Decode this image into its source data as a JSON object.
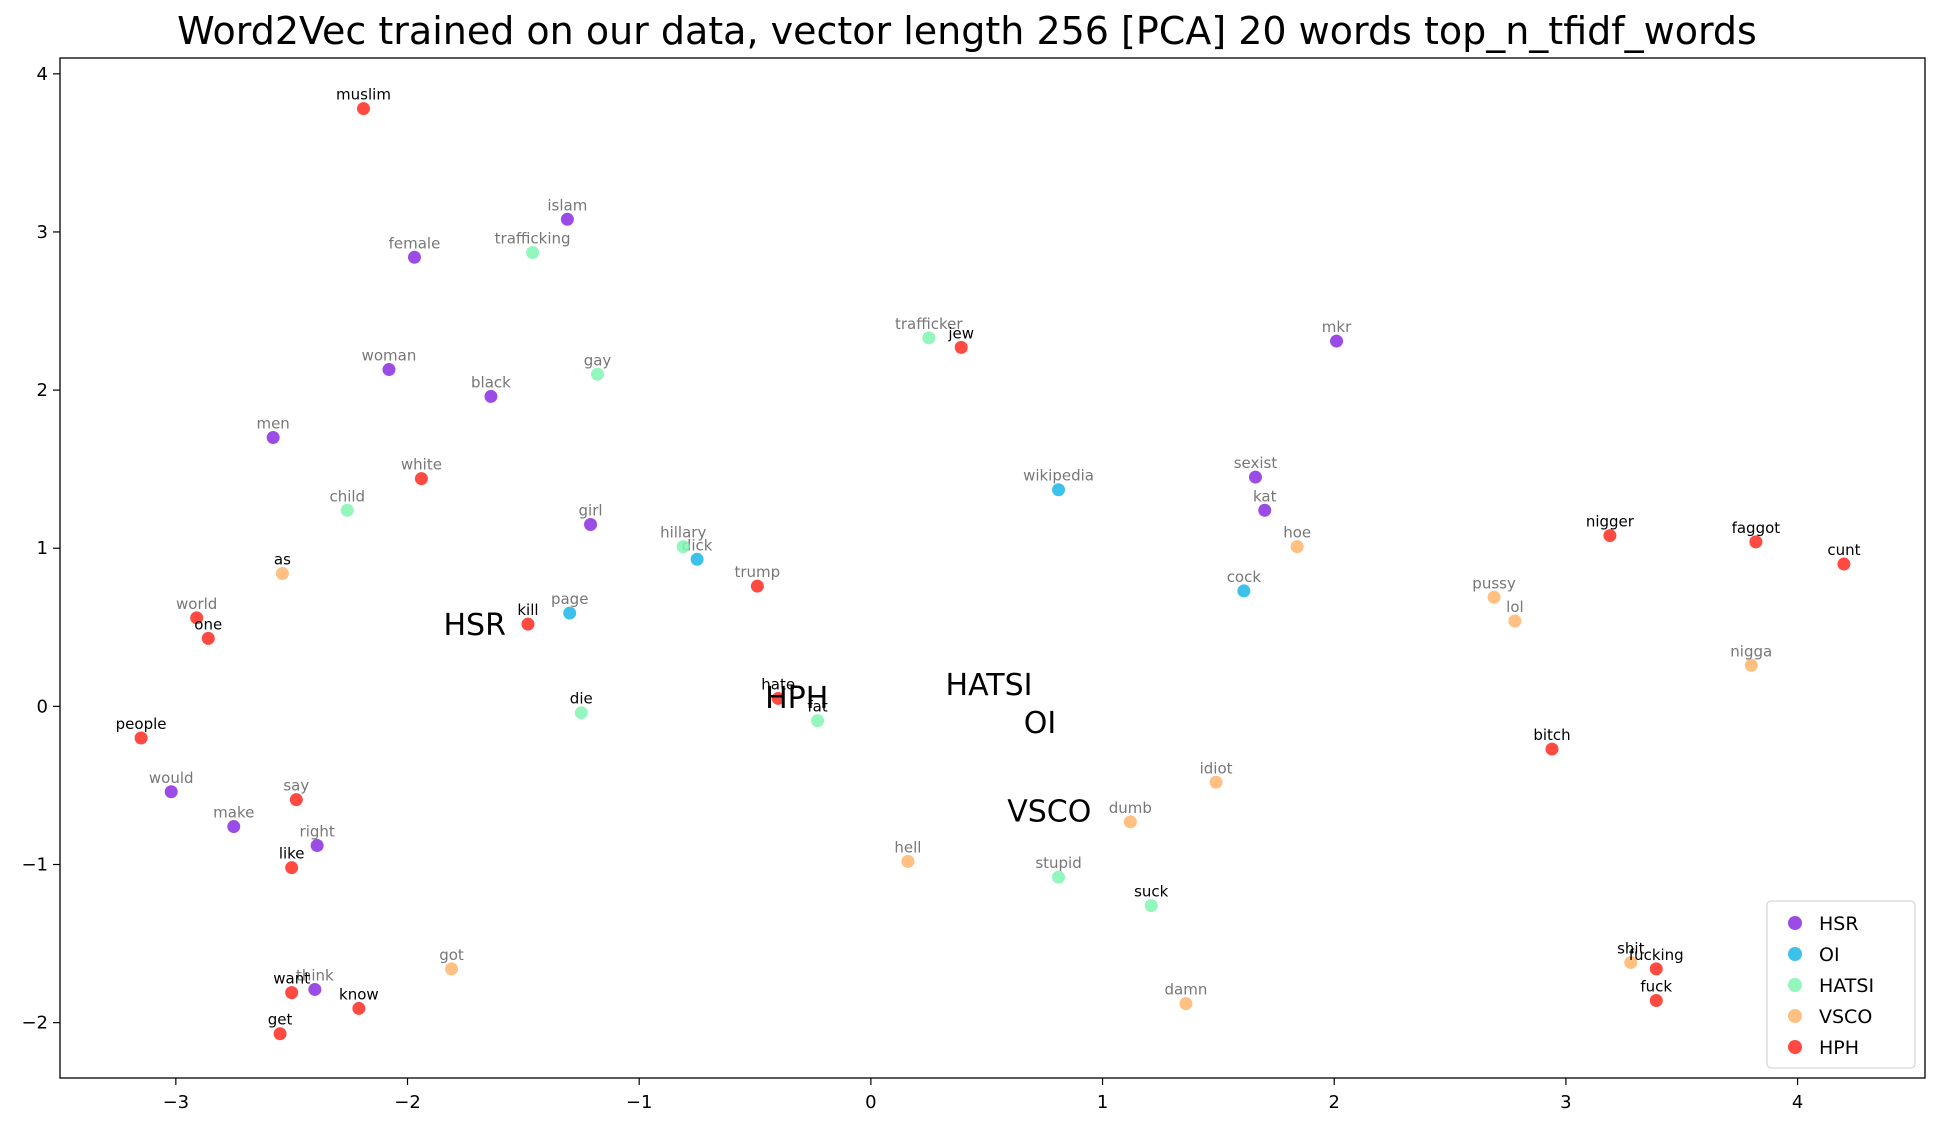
{
  "chart_data": {
    "type": "scatter",
    "title": "Word2Vec trained on our data, vector length 256 [PCA] 20 words top_n_tfidf_words",
    "xlabel": "",
    "ylabel": "",
    "xlim": [
      -3.5,
      4.55
    ],
    "ylim": [
      -2.35,
      4.1
    ],
    "xticks": [
      -3,
      -2,
      -1,
      0,
      1,
      2,
      3,
      4
    ],
    "yticks": [
      -2,
      -1,
      0,
      1,
      2,
      3,
      4
    ],
    "grid": false,
    "legend_position": "bottom-right",
    "series": [
      {
        "name": "HSR",
        "color": "#8a2be2",
        "points": [
          {
            "label": "islam",
            "x": -1.31,
            "y": 3.08,
            "label_color": "#777777"
          },
          {
            "label": "female",
            "x": -1.97,
            "y": 2.84,
            "label_color": "#777777"
          },
          {
            "label": "woman",
            "x": -2.08,
            "y": 2.13,
            "label_color": "#777777"
          },
          {
            "label": "black",
            "x": -1.64,
            "y": 1.96,
            "label_color": "#777777"
          },
          {
            "label": "men",
            "x": -2.58,
            "y": 1.7,
            "label_color": "#777777"
          },
          {
            "label": "girl",
            "x": -1.21,
            "y": 1.15,
            "label_color": "#777777"
          },
          {
            "label": "mkr",
            "x": 2.01,
            "y": 2.31,
            "label_color": "#777777"
          },
          {
            "label": "sexist",
            "x": 1.66,
            "y": 1.45,
            "label_color": "#777777"
          },
          {
            "label": "kat",
            "x": 1.7,
            "y": 1.24,
            "label_color": "#777777"
          },
          {
            "label": "would",
            "x": -3.02,
            "y": -0.54,
            "label_color": "#777777"
          },
          {
            "label": "make",
            "x": -2.75,
            "y": -0.76,
            "label_color": "#777777"
          },
          {
            "label": "right",
            "x": -2.39,
            "y": -0.88,
            "label_color": "#777777"
          },
          {
            "label": "think",
            "x": -2.4,
            "y": -1.79,
            "label_color": "#777777"
          }
        ]
      },
      {
        "name": "OI",
        "color": "#1ab6e6",
        "points": [
          {
            "label": "wikipedia",
            "x": 0.81,
            "y": 1.37,
            "label_color": "#777777"
          },
          {
            "label": "dick",
            "x": -0.75,
            "y": 0.93,
            "label_color": "#777777"
          },
          {
            "label": "page",
            "x": -1.3,
            "y": 0.59,
            "label_color": "#777777"
          },
          {
            "label": "cock",
            "x": 1.61,
            "y": 0.73,
            "label_color": "#777777"
          }
        ]
      },
      {
        "name": "HATSI",
        "color": "#80f5b0",
        "points": [
          {
            "label": "trafficking",
            "x": -1.46,
            "y": 2.87,
            "label_color": "#777777"
          },
          {
            "label": "gay",
            "x": -1.18,
            "y": 2.1,
            "label_color": "#777777"
          },
          {
            "label": "child",
            "x": -2.26,
            "y": 1.24,
            "label_color": "#777777"
          },
          {
            "label": "trafficker",
            "x": 0.25,
            "y": 2.33,
            "label_color": "#777777"
          },
          {
            "label": "hillary",
            "x": -0.81,
            "y": 1.01,
            "label_color": "#777777"
          },
          {
            "label": "die",
            "x": -1.25,
            "y": -0.04,
            "label_color": "#000000"
          },
          {
            "label": "fat",
            "x": -0.23,
            "y": -0.09,
            "label_color": "#000000"
          },
          {
            "label": "stupid",
            "x": 0.81,
            "y": -1.08,
            "label_color": "#777777"
          },
          {
            "label": "suck",
            "x": 1.21,
            "y": -1.26,
            "label_color": "#000000"
          }
        ]
      },
      {
        "name": "VSCO",
        "color": "#ffb56b",
        "points": [
          {
            "label": "hoe",
            "x": 1.84,
            "y": 1.01,
            "label_color": "#777777"
          },
          {
            "label": "pussy",
            "x": 2.69,
            "y": 0.69,
            "label_color": "#777777"
          },
          {
            "label": "lol",
            "x": 2.78,
            "y": 0.54,
            "label_color": "#777777"
          },
          {
            "label": "nigga",
            "x": 3.8,
            "y": 0.26,
            "label_color": "#777777"
          },
          {
            "label": "idiot",
            "x": 1.49,
            "y": -0.48,
            "label_color": "#777777"
          },
          {
            "label": "dumb",
            "x": 1.12,
            "y": -0.73,
            "label_color": "#777777"
          },
          {
            "label": "hell",
            "x": 0.16,
            "y": -0.98,
            "label_color": "#777777"
          },
          {
            "label": "got",
            "x": -1.81,
            "y": -1.66,
            "label_color": "#777777"
          },
          {
            "label": "damn",
            "x": 1.36,
            "y": -1.88,
            "label_color": "#777777"
          },
          {
            "label": "as",
            "x": -2.54,
            "y": 0.84,
            "label_color": "#000000"
          },
          {
            "label": "shit",
            "x": 3.28,
            "y": -1.62,
            "label_color": "#000000"
          }
        ]
      },
      {
        "name": "HPH",
        "color": "#ff2a20",
        "points": [
          {
            "label": "muslim",
            "x": -2.19,
            "y": 3.78,
            "label_color": "#000000"
          },
          {
            "label": "white",
            "x": -1.94,
            "y": 1.44,
            "label_color": "#777777"
          },
          {
            "label": "jew",
            "x": 0.39,
            "y": 2.27,
            "label_color": "#000000"
          },
          {
            "label": "trump",
            "x": -0.49,
            "y": 0.76,
            "label_color": "#777777"
          },
          {
            "label": "world",
            "x": -2.91,
            "y": 0.56,
            "label_color": "#777777"
          },
          {
            "label": "one",
            "x": -2.86,
            "y": 0.43,
            "label_color": "#000000"
          },
          {
            "label": "kill",
            "x": -1.48,
            "y": 0.52,
            "label_color": "#000000"
          },
          {
            "label": "hate",
            "x": -0.4,
            "y": 0.05,
            "label_color": "#000000"
          },
          {
            "label": "people",
            "x": -3.15,
            "y": -0.2,
            "label_color": "#000000"
          },
          {
            "label": "say",
            "x": -2.48,
            "y": -0.59,
            "label_color": "#777777"
          },
          {
            "label": "like",
            "x": -2.5,
            "y": -1.02,
            "label_color": "#000000"
          },
          {
            "label": "want",
            "x": -2.5,
            "y": -1.81,
            "label_color": "#000000"
          },
          {
            "label": "know",
            "x": -2.21,
            "y": -1.91,
            "label_color": "#000000"
          },
          {
            "label": "get",
            "x": -2.55,
            "y": -2.07,
            "label_color": "#000000"
          },
          {
            "label": "nigger",
            "x": 3.19,
            "y": 1.08,
            "label_color": "#000000"
          },
          {
            "label": "faggot",
            "x": 3.82,
            "y": 1.04,
            "label_color": "#000000"
          },
          {
            "label": "cunt",
            "x": 4.2,
            "y": 0.9,
            "label_color": "#000000"
          },
          {
            "label": "bitch",
            "x": 2.94,
            "y": -0.27,
            "label_color": "#000000"
          },
          {
            "label": "fucking",
            "x": 3.39,
            "y": -1.66,
            "label_color": "#000000"
          },
          {
            "label": "fuck",
            "x": 3.39,
            "y": -1.86,
            "label_color": "#000000"
          }
        ]
      }
    ],
    "centroid_labels": [
      {
        "label": "HSR",
        "x": -1.71,
        "y": 0.52
      },
      {
        "label": "HPH",
        "x": -0.32,
        "y": 0.06
      },
      {
        "label": "HATSI",
        "x": 0.51,
        "y": 0.14
      },
      {
        "label": "OI",
        "x": 0.73,
        "y": -0.1
      },
      {
        "label": "VSCO",
        "x": 0.77,
        "y": -0.66
      }
    ]
  }
}
